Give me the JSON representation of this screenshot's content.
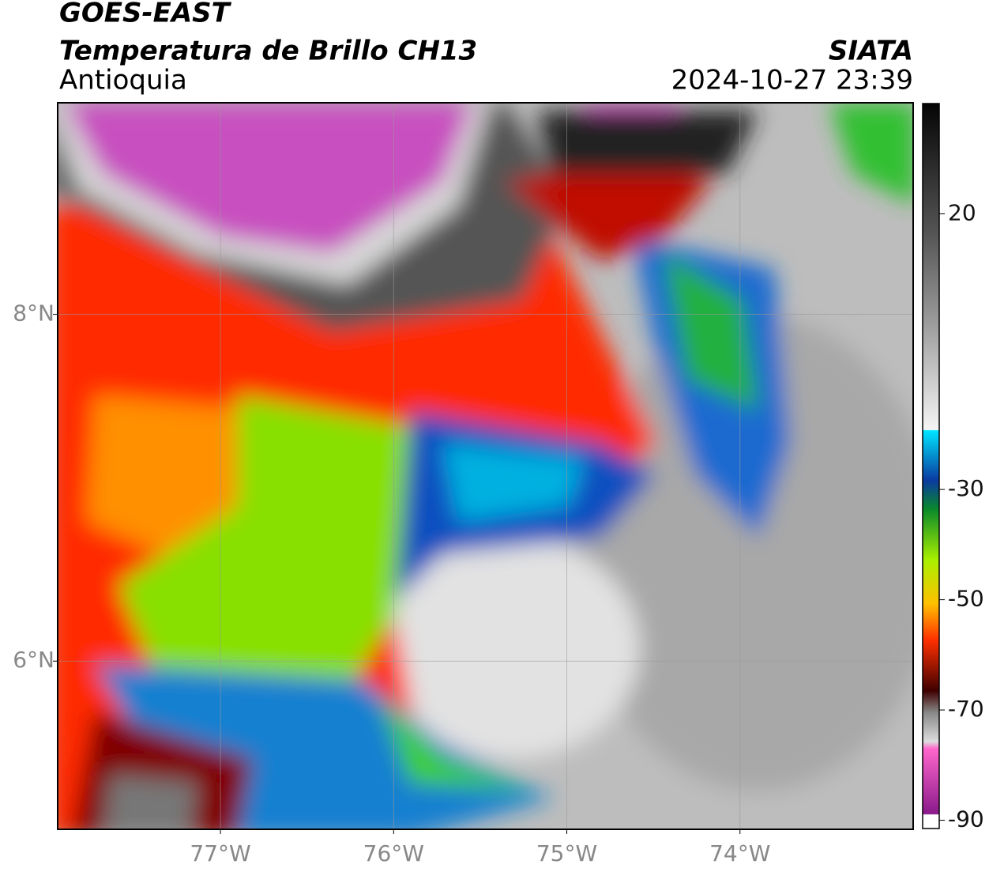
{
  "header": {
    "satellite": "GOES-EAST",
    "product": "Temperatura de Brillo CH13",
    "region": "Antioquia",
    "source": "SIATA",
    "datetime": "2024-10-27 23:39"
  },
  "map": {
    "lon_lim": [
      -77.94,
      -73.0
    ],
    "lat_lim": [
      5.03,
      9.22
    ],
    "lon_ticks": [
      {
        "value": -77,
        "label": "77°W"
      },
      {
        "value": -76,
        "label": "76°W"
      },
      {
        "value": -75,
        "label": "75°W"
      },
      {
        "value": -74,
        "label": "74°W"
      }
    ],
    "lat_ticks": [
      {
        "value": 8,
        "label": "8°N"
      },
      {
        "value": 6,
        "label": "6°N"
      }
    ]
  },
  "colorbar": {
    "lim": [
      -91.5,
      40
    ],
    "ticks": [
      20,
      -30,
      -50,
      -70,
      -90
    ]
  }
}
